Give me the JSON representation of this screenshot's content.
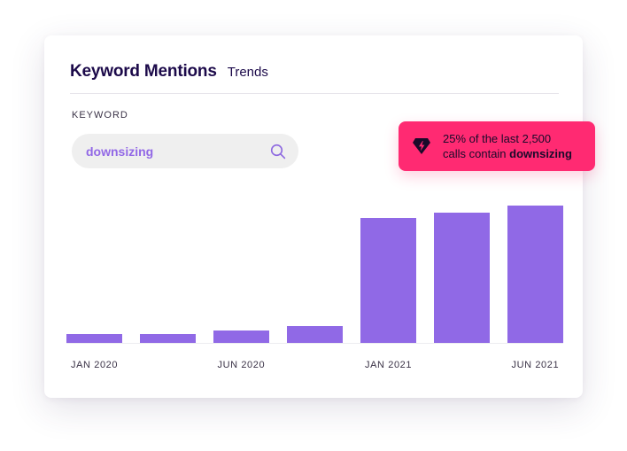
{
  "header": {
    "title": "Keyword Mentions",
    "subtitle": "Trends"
  },
  "keyword": {
    "label": "KEYWORD",
    "value": "downsizing"
  },
  "callout": {
    "line1": "25% of the last 2,500",
    "line2_prefix": "calls contain ",
    "line2_keyword": "downsizing"
  },
  "colors": {
    "bar": "#9069e6",
    "callout": "#ff2a72",
    "title": "#1c0a4a"
  },
  "chart_data": {
    "type": "bar",
    "title": "Keyword Mentions",
    "categories": [
      "JAN 2020",
      "",
      "JUN 2020",
      "",
      "JAN 2021",
      "",
      "JUN 2021"
    ],
    "tick_labels": [
      "JAN 2020",
      "JUN 2020",
      "JAN 2021",
      "JUN 2021"
    ],
    "values": [
      6,
      6,
      9,
      12,
      88,
      92,
      97
    ],
    "ylim": [
      0,
      100
    ],
    "xlabel": "",
    "ylabel": "",
    "grid": false
  }
}
